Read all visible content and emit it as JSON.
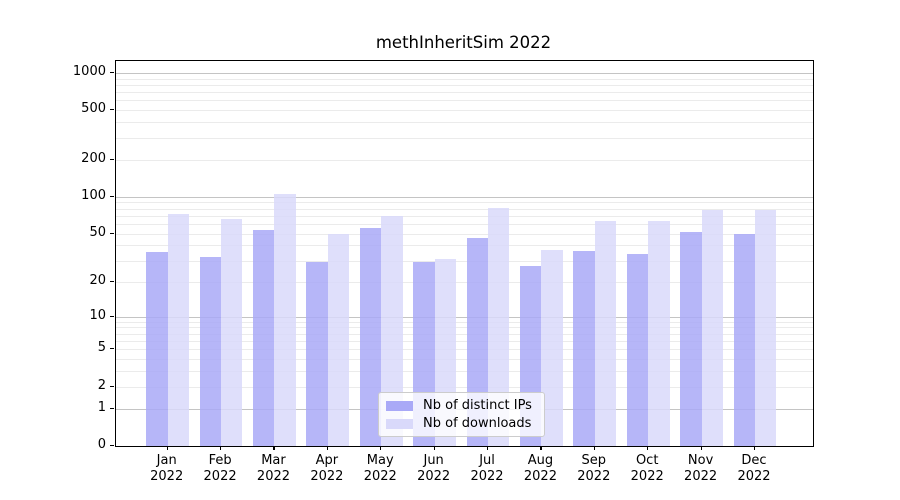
{
  "chart_data": {
    "type": "bar",
    "title": "methInheritSim 2022",
    "categories": [
      "Jan",
      "Feb",
      "Mar",
      "Apr",
      "May",
      "Jun",
      "Jul",
      "Aug",
      "Sep",
      "Oct",
      "Nov",
      "Dec"
    ],
    "category_year": "2022",
    "series": [
      {
        "name": "Nb of distinct IPs",
        "color": "#a9a9f7",
        "values": [
          35,
          32,
          54,
          29,
          56,
          29,
          46,
          27,
          36,
          34,
          52,
          50
        ]
      },
      {
        "name": "Nb of downloads",
        "color": "#d9d9fa",
        "values": [
          72,
          66,
          105,
          50,
          70,
          31,
          81,
          37,
          64,
          63,
          78,
          78
        ]
      }
    ],
    "yscale": "log1p",
    "yticks": [
      0,
      1,
      2,
      5,
      10,
      20,
      50,
      100,
      200,
      500,
      1000
    ],
    "ylim": [
      0,
      1250
    ],
    "grid": "horizontal-major-minor",
    "legend_position": "lower center",
    "axis_color": "#000000",
    "grid_major_color": "#c4c4c4",
    "grid_minor_color": "#ebebeb",
    "background_color": "#ffffff"
  }
}
